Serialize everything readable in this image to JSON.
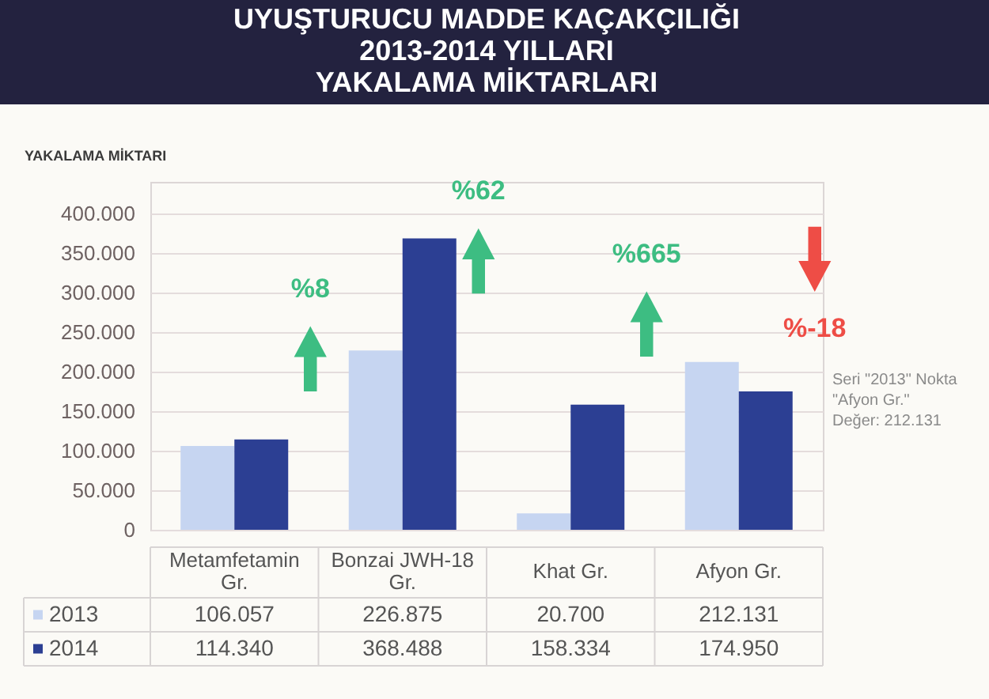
{
  "chart_data": {
    "type": "bar",
    "title": "UYUŞTURUCU MADDE KAÇAKÇILIĞI\n2013-2014 YILLARI\nYAKALAMA MİKTARLARI",
    "ylabel": "YAKALAMA MİKTARI",
    "categories": [
      "Metamfetamin Gr.",
      "Bonzai JWH-18 Gr.",
      "Khat Gr.",
      "Afyon Gr."
    ],
    "series": [
      {
        "name": "2013",
        "color": "#c6d5f1",
        "values": [
          106057,
          226875,
          20700,
          212131
        ],
        "value_labels": [
          "106.057",
          "226.875",
          "20.700",
          "212.131"
        ]
      },
      {
        "name": "2014",
        "color": "#2c3f93",
        "values": [
          114340,
          368488,
          158334,
          174950
        ],
        "value_labels": [
          "114.340",
          "368.488",
          "158.334",
          "174.950"
        ]
      }
    ],
    "ylim": [
      0,
      440000
    ],
    "yticks": [
      0,
      {
        "value": 50000,
        "label": "50.000"
      },
      {
        "value": 100000,
        "label": "100.000"
      },
      {
        "value": 150000,
        "label": "150.000"
      },
      {
        "value": 200000,
        "label": "200.000"
      },
      {
        "value": 250000,
        "label": "250.000"
      },
      {
        "value": 300000,
        "label": "300.000"
      },
      {
        "value": 350000,
        "label": "350.000"
      },
      {
        "value": 400000,
        "label": "400.000"
      }
    ],
    "grid": "y",
    "legend": "bottom",
    "annotations": [
      "%8",
      "%62",
      "%665",
      "%-18",
      "Seri \"2013\" Nokta \"Afyon Gr.\"\nDeğer: 212.131"
    ]
  }
}
